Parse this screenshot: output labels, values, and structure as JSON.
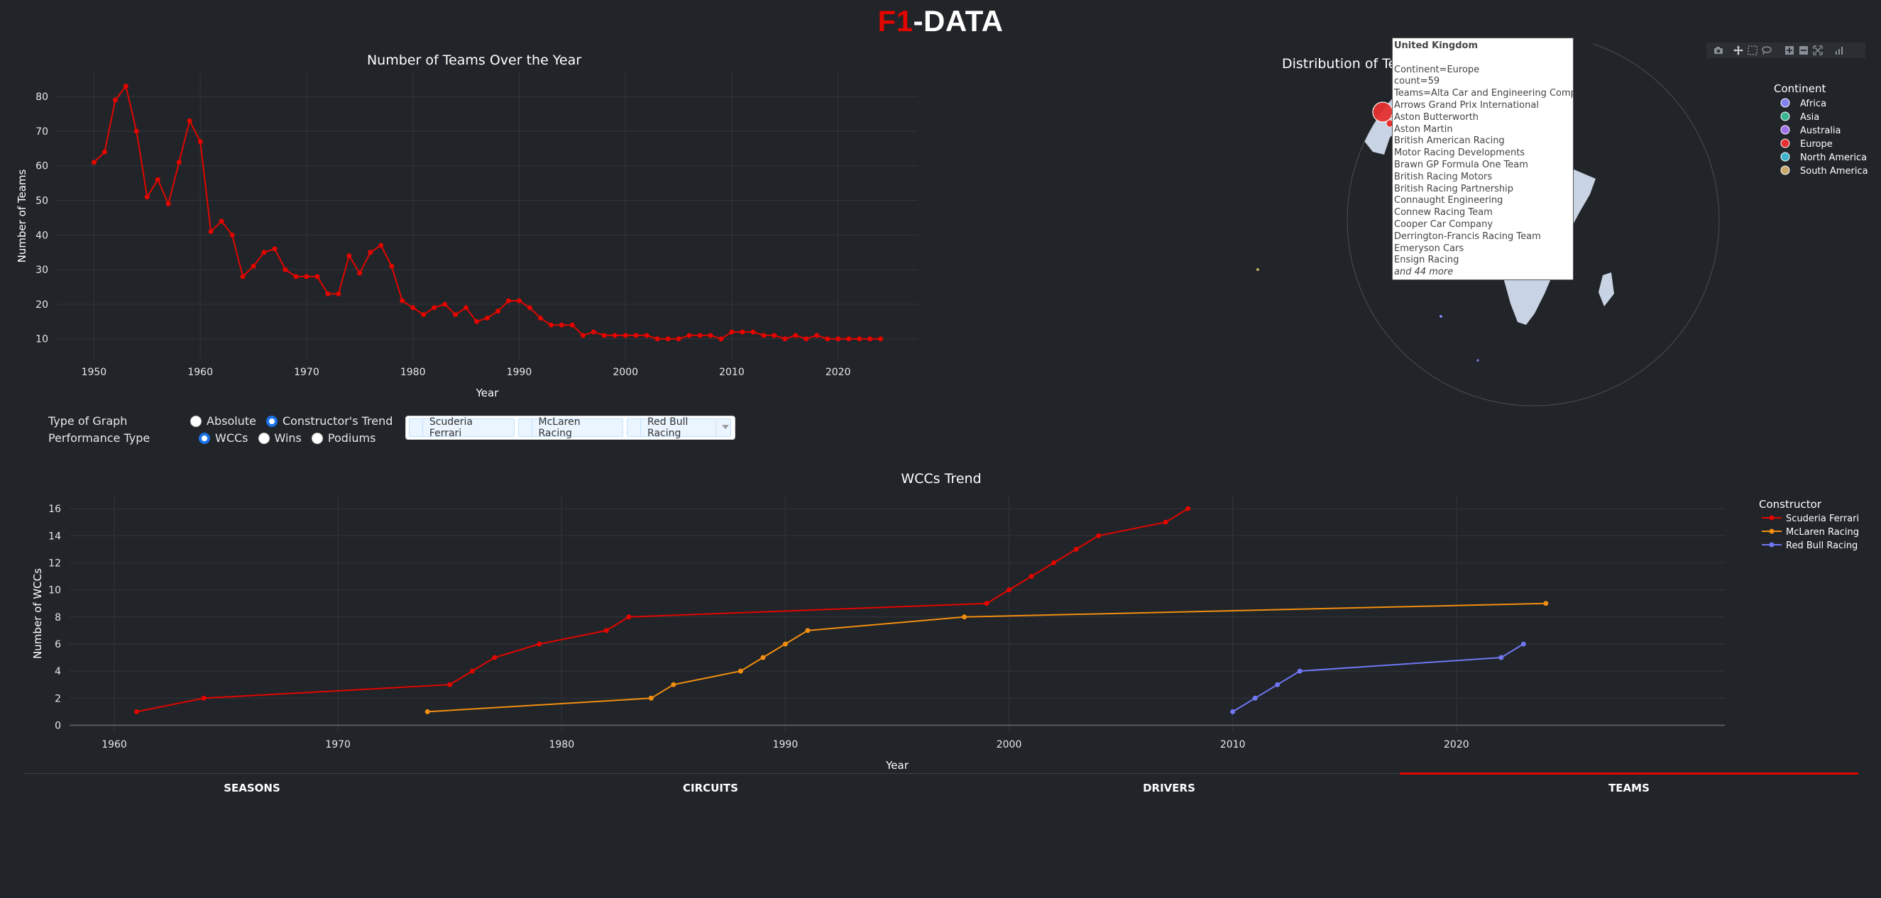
{
  "header": {
    "brand_red": "F1",
    "brand_white": "-DATA"
  },
  "colors": {
    "red": "#e10600",
    "orange": "#f28e10",
    "purple": "#6f77f5",
    "bg": "#212428"
  },
  "chart_data": [
    {
      "type": "line",
      "title": "Number of Teams Over the Year",
      "xlabel": "Year",
      "ylabel": "Number of Teams",
      "xlim": [
        1946.5,
        2027.5
      ],
      "ylim": [
        4,
        87
      ],
      "xticks": [
        1950,
        1960,
        1970,
        1980,
        1990,
        2000,
        2010,
        2020
      ],
      "yticks": [
        10,
        20,
        30,
        40,
        50,
        60,
        70,
        80
      ],
      "x": [
        1950,
        1951,
        1952,
        1953,
        1954,
        1955,
        1956,
        1957,
        1958,
        1959,
        1960,
        1961,
        1962,
        1963,
        1964,
        1965,
        1966,
        1967,
        1968,
        1969,
        1970,
        1971,
        1972,
        1973,
        1974,
        1975,
        1976,
        1977,
        1978,
        1979,
        1980,
        1981,
        1982,
        1983,
        1984,
        1985,
        1986,
        1987,
        1988,
        1989,
        1990,
        1991,
        1992,
        1993,
        1994,
        1995,
        1996,
        1997,
        1998,
        1999,
        2000,
        2001,
        2002,
        2003,
        2004,
        2005,
        2006,
        2007,
        2008,
        2009,
        2010,
        2011,
        2012,
        2013,
        2014,
        2015,
        2016,
        2017,
        2018,
        2019,
        2020,
        2021,
        2022,
        2023,
        2024
      ],
      "values": [
        61,
        64,
        79,
        83,
        70,
        51,
        56,
        49,
        61,
        73,
        67,
        41,
        44,
        40,
        28,
        31,
        35,
        36,
        30,
        28,
        28,
        28,
        23,
        23,
        34,
        29,
        35,
        37,
        31,
        21,
        19,
        17,
        19,
        20,
        17,
        19,
        15,
        16,
        18,
        21,
        21,
        19,
        16,
        14,
        14,
        14,
        11,
        12,
        11,
        11,
        11,
        11,
        11,
        10,
        10,
        10,
        11,
        11,
        11,
        10,
        12,
        12,
        12,
        11,
        11,
        10,
        11,
        10,
        11,
        10,
        10,
        10,
        10,
        10,
        10
      ]
    },
    {
      "type": "scatter_geo",
      "title": "Distribution of Teams",
      "legend_title": "Continent",
      "legend": [
        {
          "name": "Africa",
          "color": "#7e83f0"
        },
        {
          "name": "Asia",
          "color": "#3ab591"
        },
        {
          "name": "Australia",
          "color": "#a070e8"
        },
        {
          "name": "Europe",
          "color": "#e53131"
        },
        {
          "name": "North America",
          "color": "#3fb3cc"
        },
        {
          "name": "South America",
          "color": "#c9a96b"
        }
      ]
    },
    {
      "type": "line",
      "title": "WCCs Trend",
      "xlabel": "Year",
      "ylabel": "Number of WCCs",
      "xlim": [
        1958,
        2032
      ],
      "ylim": [
        -0.5,
        17
      ],
      "xticks": [
        1960,
        1970,
        1980,
        1990,
        2000,
        2010,
        2020
      ],
      "yticks": [
        0,
        2,
        4,
        6,
        8,
        10,
        12,
        14,
        16
      ],
      "legend_title": "Constructor",
      "series": [
        {
          "name": "Scuderia Ferrari",
          "color": "#e10600",
          "x": [
            1961,
            1964,
            1975,
            1976,
            1977,
            1979,
            1982,
            1983,
            1999,
            2000,
            2001,
            2002,
            2003,
            2004,
            2007,
            2008
          ],
          "values": [
            1,
            2,
            3,
            4,
            5,
            6,
            7,
            8,
            9,
            10,
            11,
            12,
            13,
            14,
            15,
            16
          ]
        },
        {
          "name": "McLaren Racing",
          "color": "#f28e10",
          "x": [
            1974,
            1984,
            1985,
            1988,
            1989,
            1990,
            1991,
            1998,
            2024
          ],
          "values": [
            1,
            2,
            3,
            4,
            5,
            6,
            7,
            8,
            9
          ]
        },
        {
          "name": "Red Bull Racing",
          "color": "#6f77f5",
          "x": [
            2010,
            2011,
            2012,
            2013,
            2022,
            2023
          ],
          "values": [
            1,
            2,
            3,
            4,
            5,
            6
          ]
        }
      ]
    }
  ],
  "controls": {
    "graph_type_label": "Type of Graph",
    "graph_type_options": [
      "Absolute",
      "Constructor's Trend"
    ],
    "graph_type_selected": 1,
    "performance_label": "Performance Type",
    "performance_options": [
      "WCCs",
      "Wins",
      "Podiums"
    ],
    "performance_selected": 0,
    "selected_teams": [
      "Scuderia Ferrari",
      "McLaren Racing",
      "Red Bull Racing"
    ]
  },
  "hover": {
    "title": "United Kingdom",
    "lines": [
      "Continent=Europe",
      "count=59",
      "Teams=Alta Car and Engineering Company",
      "Arrows Grand Prix International",
      "Aston Butterworth",
      "Aston Martin",
      "British American Racing",
      "Motor Racing Developments",
      "Brawn GP Formula One Team",
      "British Racing Motors",
      "British Racing Partnership",
      "Connaught Engineering",
      "Connew Racing Team",
      "Cooper Car Company",
      "Derrington-Francis Racing Team",
      "Emeryson Cars",
      "Ensign Racing"
    ],
    "more": "and 44 more"
  },
  "tabs": [
    {
      "label": "SEASONS",
      "active": false
    },
    {
      "label": "CIRCUITS",
      "active": false
    },
    {
      "label": "DRIVERS",
      "active": false
    },
    {
      "label": "TEAMS",
      "active": true
    }
  ]
}
